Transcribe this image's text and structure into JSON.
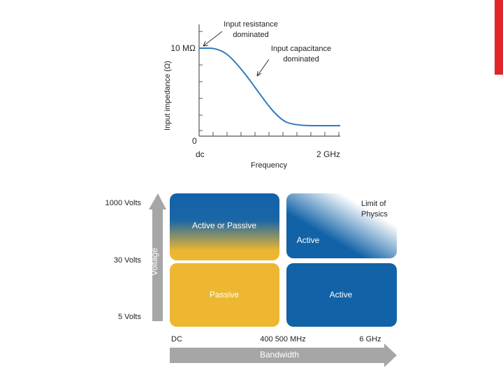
{
  "impedance_chart": {
    "y_axis_label": "Input impedance (Ω)",
    "y_top_label": "10 MΩ",
    "y_bottom_label": "0",
    "x_left_label": "dc",
    "x_right_label": "2 GHz",
    "x_axis_label": "Frequency",
    "annotations": [
      [
        "Input resistance",
        "dominated"
      ],
      [
        "Input capacitance",
        "dominated"
      ]
    ]
  },
  "probe_map": {
    "y_axis_label": "Voltage",
    "y_labels": [
      "1000 Volts",
      "30 Volts",
      "5 Volts"
    ],
    "x_labels": [
      "DC",
      "400 500 MHz",
      "6 GHz"
    ],
    "x_axis_label": "Bandwidth",
    "regions": [
      "Active or Passive",
      "Active",
      "Passive",
      "Active"
    ],
    "limit_label": [
      "Limit of",
      "Physics"
    ]
  }
}
